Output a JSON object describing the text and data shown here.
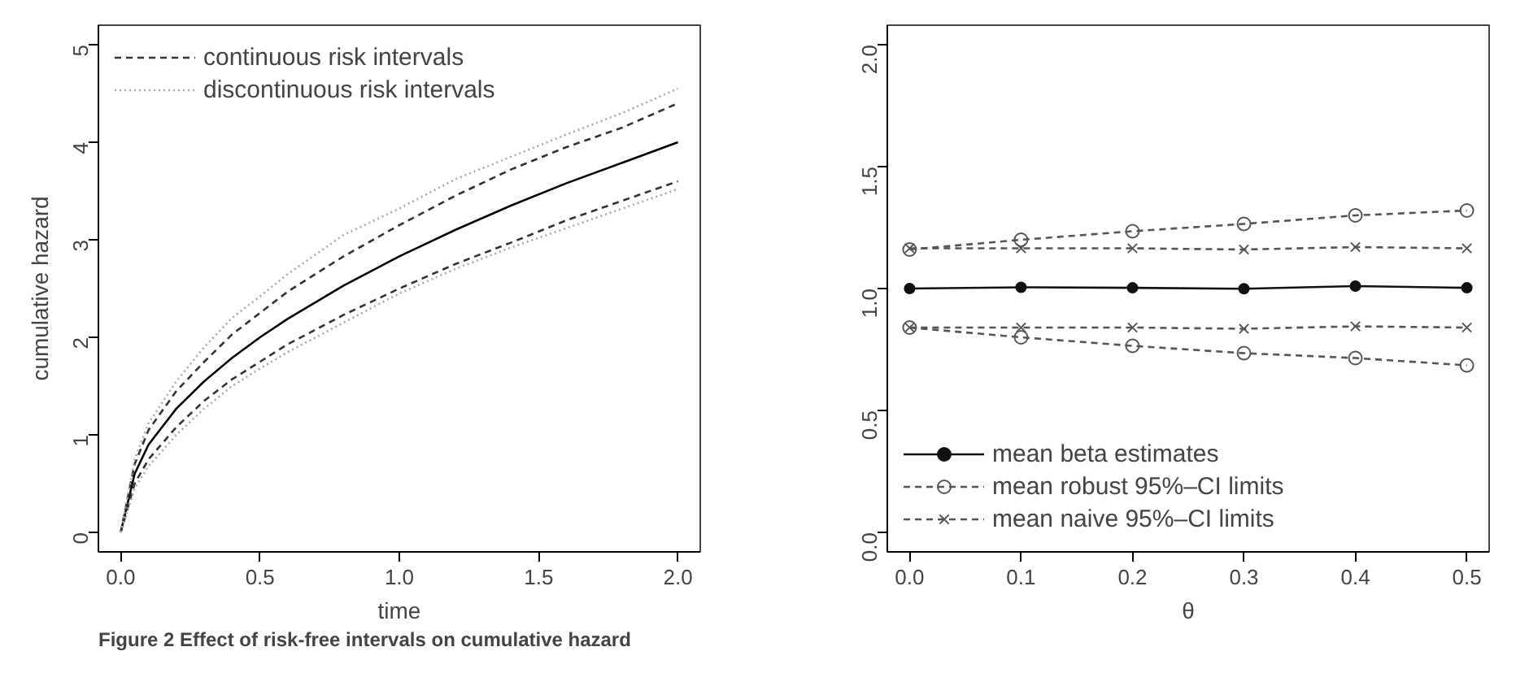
{
  "chart_data": [
    {
      "type": "line",
      "xlabel": "time",
      "ylabel": "cumulative hazard",
      "xlim": [
        -0.08,
        2.08
      ],
      "ylim": [
        -0.2,
        5.2
      ],
      "xticks": [
        {
          "value": 0,
          "label": "0.0"
        },
        0.5,
        {
          "value": 1,
          "label": "1.0"
        },
        1.5,
        {
          "value": 2,
          "label": "2.0"
        }
      ],
      "yticks": [
        0,
        1,
        2,
        3,
        4,
        5
      ],
      "grid": false,
      "legend": "top left",
      "marker": "none",
      "x": [
        0,
        0.05,
        0.1,
        0.2,
        0.3,
        0.4,
        0.5,
        0.6,
        0.8,
        1.0,
        1.2,
        1.4,
        1.6,
        1.8,
        2.0
      ],
      "annotations": [
        "Figure 2 Effect of risk-free intervals on cumulative hazard"
      ],
      "series": [
        {
          "color": "#000000",
          "line_style": "solid",
          "values": [
            0,
            0.6,
            0.9,
            1.27,
            1.55,
            1.79,
            2.0,
            2.19,
            2.53,
            2.83,
            3.1,
            3.35,
            3.58,
            3.79,
            4.0
          ]
        },
        {
          "name": "continuous risk intervals",
          "color": "#333333",
          "line_style": "dashed",
          "values": [
            0,
            0.7,
            1.05,
            1.45,
            1.75,
            2.03,
            2.25,
            2.47,
            2.83,
            3.15,
            3.45,
            3.72,
            3.95,
            4.15,
            4.4
          ]
        },
        {
          "color": "#333333",
          "line_style": "dashed",
          "values": [
            0,
            0.5,
            0.75,
            1.08,
            1.35,
            1.57,
            1.75,
            1.93,
            2.23,
            2.5,
            2.75,
            2.97,
            3.2,
            3.4,
            3.6
          ]
        },
        {
          "name": "discontinuous risk intervals",
          "color": "#aaaaaa",
          "line_style": "dotted",
          "values": [
            0,
            0.75,
            1.12,
            1.55,
            1.9,
            2.2,
            2.42,
            2.65,
            3.05,
            3.32,
            3.62,
            3.85,
            4.08,
            4.3,
            4.55
          ]
        },
        {
          "color": "#aaaaaa",
          "line_style": "dotted",
          "values": [
            0,
            0.45,
            0.68,
            1.0,
            1.27,
            1.5,
            1.68,
            1.85,
            2.15,
            2.45,
            2.7,
            2.92,
            3.12,
            3.32,
            3.52
          ]
        }
      ]
    },
    {
      "type": "line",
      "xlabel": "θ",
      "xlim": [
        -0.02,
        0.52
      ],
      "ylim": [
        -0.08,
        2.08
      ],
      "xticks": [
        {
          "value": 0,
          "label": "0.0"
        },
        0.1,
        0.2,
        0.3,
        0.4,
        0.5
      ],
      "yticks": [
        {
          "value": 0,
          "label": "0.0"
        },
        0.5,
        {
          "value": 1,
          "label": "1.0"
        },
        1.5,
        {
          "value": 2,
          "label": "2.0"
        }
      ],
      "grid": false,
      "legend": "bottom left",
      "x": [
        0,
        0.1,
        0.2,
        0.3,
        0.4,
        0.5
      ],
      "series": [
        {
          "name": "mean beta estimates",
          "color": "#111111",
          "line_style": "solid",
          "marker": "circle",
          "values": [
            1.0,
            1.005,
            1.003,
            0.999,
            1.01,
            1.003
          ]
        },
        {
          "name": "mean robust 95%–CI limits",
          "color": "#555555",
          "line_style": "dashed",
          "marker": "circle_open",
          "values": [
            1.16,
            1.2,
            1.235,
            1.265,
            1.3,
            1.32
          ]
        },
        {
          "color": "#555555",
          "line_style": "dashed",
          "marker": "circle_open",
          "values": [
            0.84,
            0.8,
            0.765,
            0.735,
            0.715,
            0.685
          ]
        },
        {
          "name": "mean naive 95%–CI limits",
          "color": "#555555",
          "line_style": "dashed",
          "marker": "cross",
          "values": [
            1.165,
            1.165,
            1.165,
            1.16,
            1.17,
            1.165
          ]
        },
        {
          "color": "#555555",
          "line_style": "dashed",
          "marker": "cross",
          "values": [
            0.84,
            0.84,
            0.84,
            0.835,
            0.845,
            0.84
          ]
        }
      ]
    }
  ]
}
